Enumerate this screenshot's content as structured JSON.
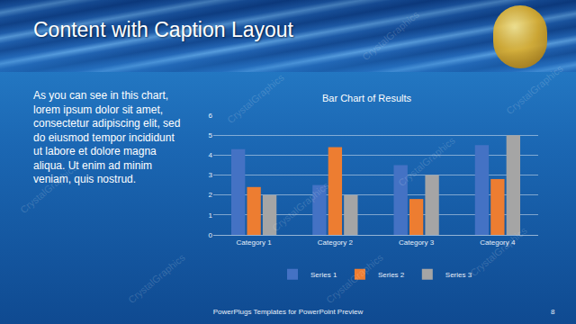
{
  "slide": {
    "title": "Content with Caption Layout",
    "caption": "As you can see in this chart, lorem ipsum dolor sit amet, consectetur adipiscing elit, sed do eiusmod tempor incididunt ut labore et dolore magna aliqua. Ut enim ad minim veniam, quis nostrud.",
    "footer": "PowerPlugs Templates for PowerPoint Preview",
    "page_number": 8,
    "watermark": "CrystalGraphics"
  },
  "chart_data": {
    "type": "bar",
    "title": "Bar Chart of Results",
    "categories": [
      "Category 1",
      "Category 2",
      "Category 3",
      "Category 4"
    ],
    "series": [
      {
        "name": "Series 1",
        "color": "#4472c4",
        "values": [
          4.3,
          2.5,
          3.5,
          4.5
        ]
      },
      {
        "name": "Series 2",
        "color": "#ed7d31",
        "values": [
          2.4,
          4.4,
          1.8,
          2.8
        ]
      },
      {
        "name": "Series 3",
        "color": "#a5a5a5",
        "values": [
          2,
          2,
          3,
          5
        ]
      }
    ],
    "ylim": [
      0,
      6
    ],
    "yticks": [
      0,
      1,
      2,
      3,
      4,
      5,
      6
    ],
    "grid": true,
    "legend": "bottom"
  }
}
